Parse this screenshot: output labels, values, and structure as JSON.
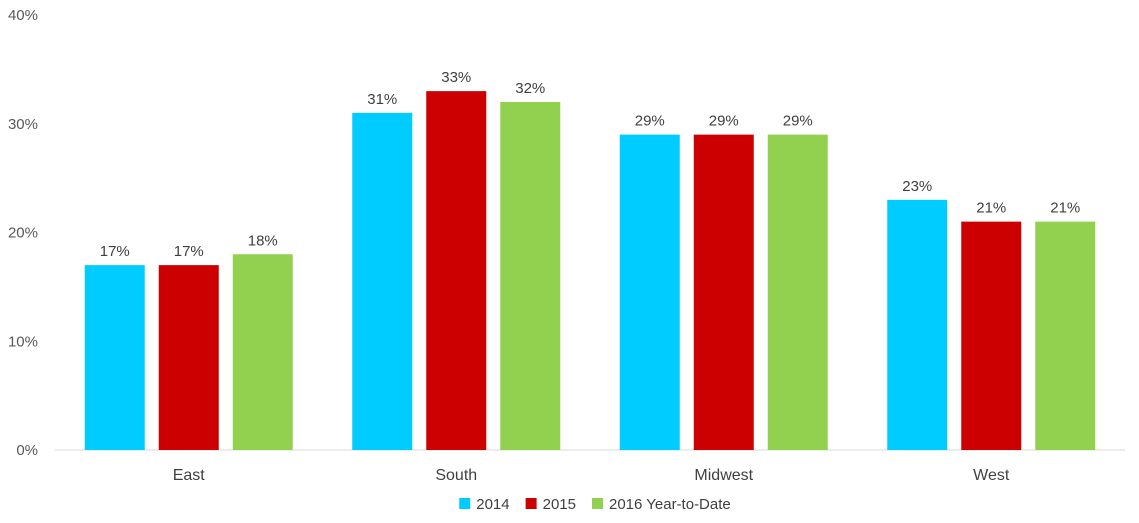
{
  "chart_data": {
    "type": "bar",
    "title": "",
    "xlabel": "",
    "ylabel": "",
    "categories": [
      "East",
      "South",
      "Midwest",
      "West"
    ],
    "series": [
      {
        "name": "2014",
        "values": [
          17,
          31,
          29,
          23
        ],
        "color": "#00ccff"
      },
      {
        "name": "2015",
        "values": [
          17,
          33,
          29,
          21
        ],
        "color": "#cc0000"
      },
      {
        "name": "2016 Year-to-Date",
        "values": [
          18,
          32,
          29,
          21
        ],
        "color": "#92d050"
      }
    ],
    "ylim": [
      0,
      40
    ],
    "yticks": [
      0,
      10,
      20,
      30,
      40
    ],
    "value_format": "%",
    "grid": false,
    "legend_position": "bottom"
  }
}
